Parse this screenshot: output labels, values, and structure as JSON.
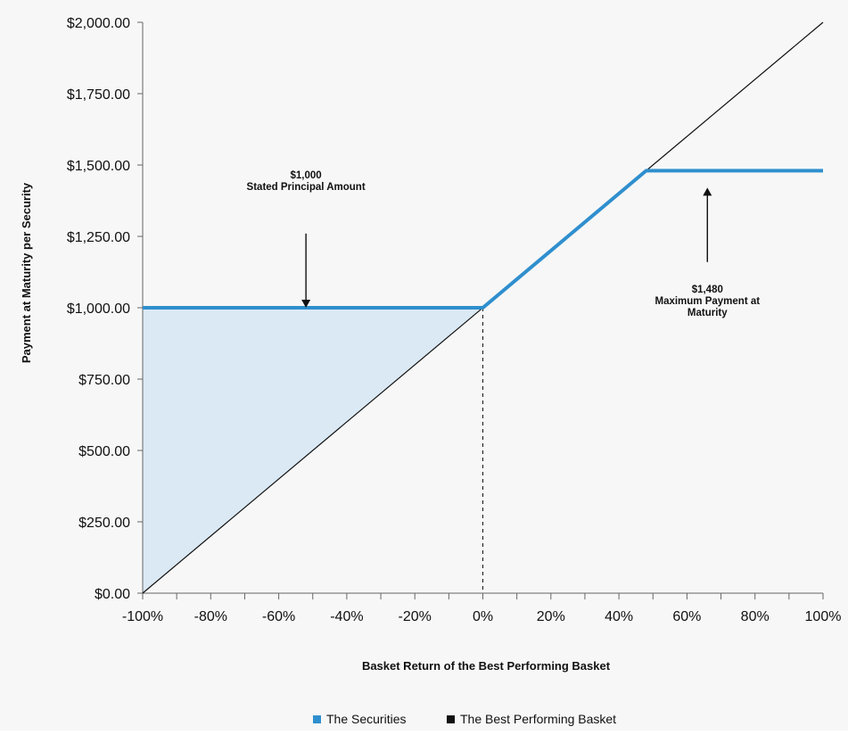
{
  "chart_data": {
    "type": "line",
    "xlabel": "Basket Return of the Best Performing Basket",
    "ylabel": "Payment at Maturity per Security",
    "xlim": [
      -100,
      100
    ],
    "ylim": [
      0,
      2000
    ],
    "x_ticks": [
      "-100%",
      "-80%",
      "-60%",
      "-40%",
      "-20%",
      "0%",
      "20%",
      "40%",
      "60%",
      "80%",
      "100%"
    ],
    "x_tick_values": [
      -100,
      -80,
      -60,
      -40,
      -20,
      0,
      20,
      40,
      60,
      80,
      100
    ],
    "y_ticks": [
      "$0.00",
      "$250.00",
      "$500.00",
      "$750.00",
      "$1,000.00",
      "$1,250.00",
      "$1,500.00",
      "$1,750.00",
      "$2,000.00"
    ],
    "y_tick_values": [
      0,
      250,
      500,
      750,
      1000,
      1250,
      1500,
      1750,
      2000
    ],
    "series": [
      {
        "name": "The Securities",
        "color": "#2f8fce",
        "x": [
          -100,
          0,
          48,
          100
        ],
        "y": [
          1000,
          1000,
          1480,
          1480
        ]
      },
      {
        "name": "The Best Performing Basket",
        "color": "#111111",
        "x": [
          -100,
          100
        ],
        "y": [
          0,
          2000
        ]
      }
    ],
    "shaded_region": {
      "color": "#dbe9f4",
      "x": [
        -100,
        0,
        -100
      ],
      "y": [
        1000,
        1000,
        0
      ]
    },
    "reference_line": {
      "x": 0,
      "style": "dashed"
    },
    "annotations": [
      {
        "lines": [
          "$1,000",
          "Stated Principal Amount"
        ],
        "arrow_direction": "down",
        "arrow_x": -52,
        "arrow_from_y": 1260,
        "arrow_to_y": 1000
      },
      {
        "lines": [
          "$1,480",
          "Maximum Payment at",
          "Maturity"
        ],
        "arrow_direction": "up",
        "arrow_x": 66,
        "arrow_from_y": 1160,
        "arrow_to_y": 1480
      }
    ],
    "legend": {
      "placement": "bottom-center",
      "items": [
        "The Securities",
        "The Best Performing Basket"
      ]
    },
    "grid": false
  }
}
